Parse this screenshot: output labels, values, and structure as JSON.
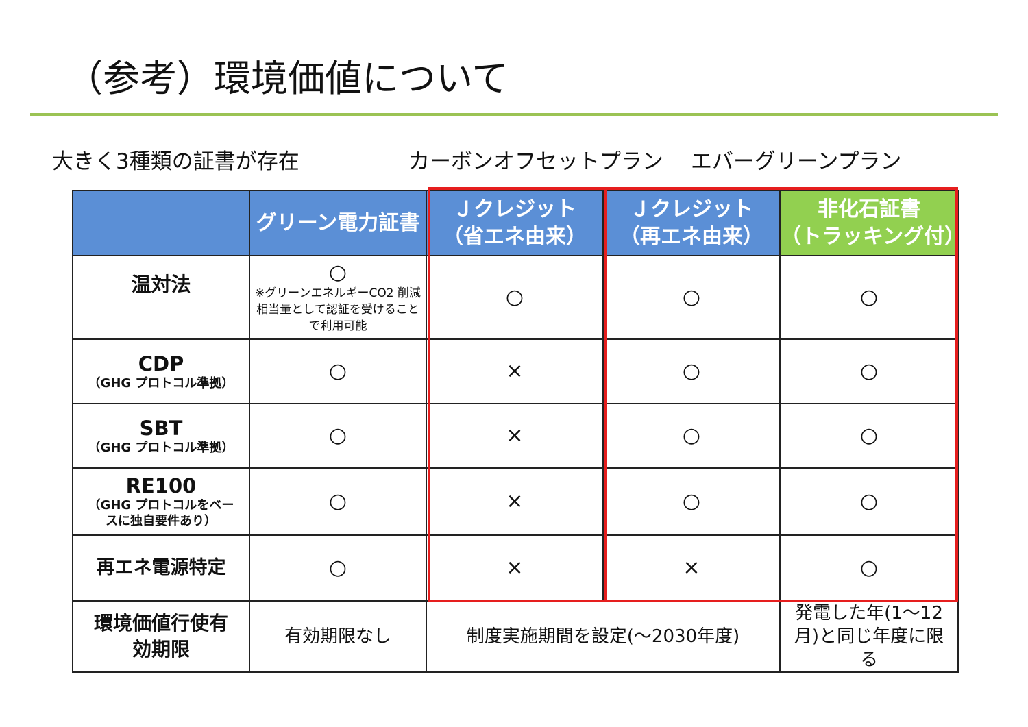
{
  "page": {
    "title": "（参考）環境価値について",
    "accent_color": "#9bc354"
  },
  "lead": {
    "left": "大きく3種類の証書が存在",
    "mid": "カーボンオフセットプラン",
    "right": "エバーグリーンプラン"
  },
  "table": {
    "header_color": "#5b8fd6",
    "header_green_color": "#92d050",
    "highlight_color": "#e61e1e",
    "columns": [
      {
        "label": "",
        "sub": ""
      },
      {
        "label": "グリーン電力証書",
        "sub": ""
      },
      {
        "label": "Ｊクレジット",
        "sub": "（省エネ由来）"
      },
      {
        "label": "Ｊクレジット",
        "sub": "（再エネ由来）"
      },
      {
        "label": "非化石証書",
        "sub": "（トラッキング付）"
      }
    ],
    "rows": [
      {
        "label": "温対法",
        "sub": "",
        "cells": [
          "○",
          "○",
          "○",
          "○"
        ],
        "note": "※グリーンエネルギーCO2 削減相当量として認証を受けることで利用可能"
      },
      {
        "label": "CDP",
        "sub": "（GHG プロトコル準拠）",
        "cells": [
          "○",
          "×",
          "○",
          "○"
        ]
      },
      {
        "label": "SBT",
        "sub": "（GHG プロトコル準拠）",
        "cells": [
          "○",
          "×",
          "○",
          "○"
        ]
      },
      {
        "label": "RE100",
        "sub": "（GHG プロトコルをベースに独自要件あり）",
        "cells": [
          "○",
          "×",
          "○",
          "○"
        ]
      },
      {
        "label": "再エネ電源特定",
        "sub": "",
        "cells": [
          "○",
          "×",
          "×",
          "○"
        ]
      }
    ],
    "validity": {
      "label": "環境価値行使有効期限",
      "green_power": "有効期限なし",
      "jcredit": "制度実施期間を設定(～2030年度)",
      "non_fossil": "発電した年(1～12月)と同じ年度に限る"
    }
  }
}
